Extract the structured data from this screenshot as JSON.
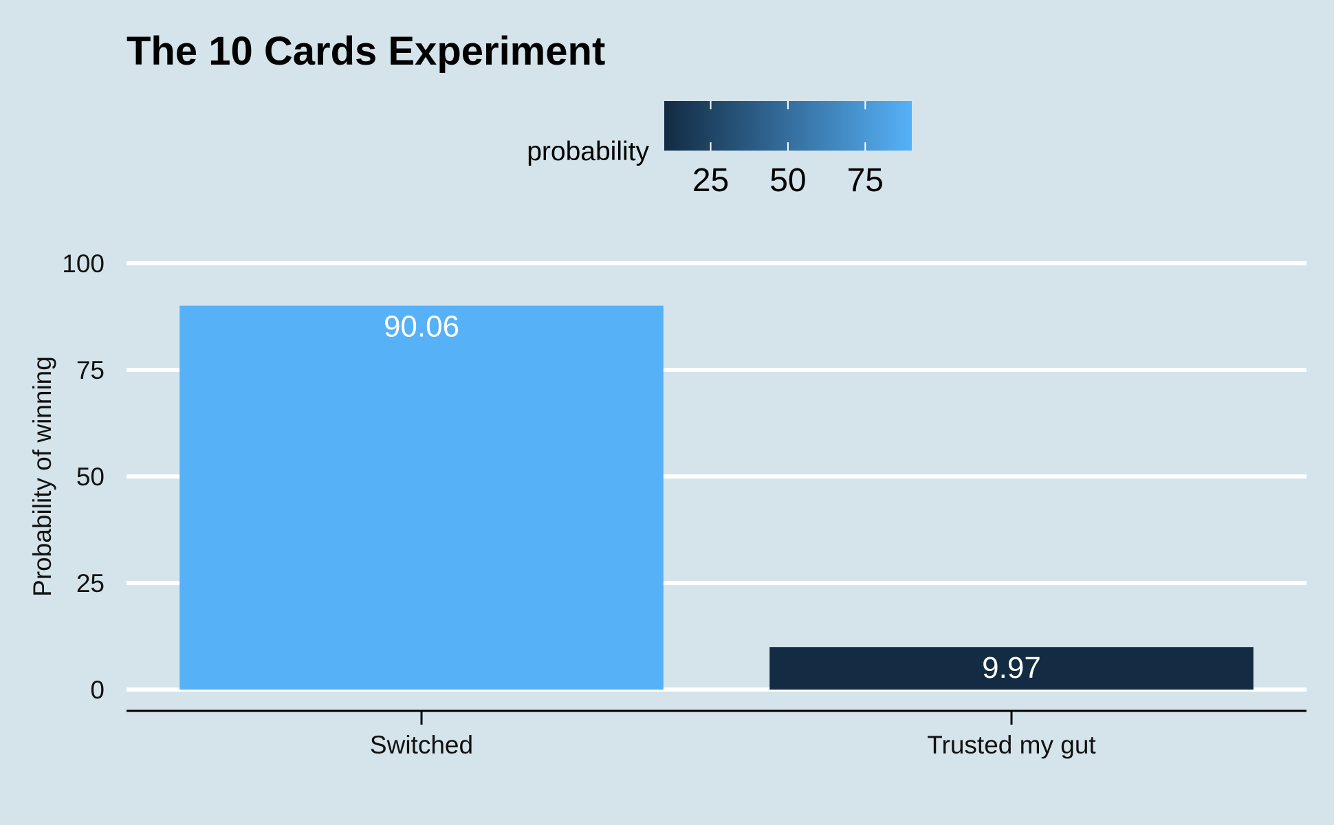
{
  "chart_data": {
    "type": "bar",
    "title": "The 10 Cards Experiment",
    "xlabel": "",
    "ylabel": "Probability of winning",
    "categories": [
      "Switched",
      "Trusted my gut"
    ],
    "values": [
      90.06,
      9.97
    ],
    "data_labels": [
      "90.06",
      "9.97"
    ],
    "ylim": [
      0,
      100
    ],
    "yticks": [
      0,
      25,
      50,
      75,
      100
    ],
    "grid": "horizontal",
    "legend": {
      "title": "probability",
      "type": "colorbar",
      "placement": "top",
      "range": [
        9.97,
        90.06
      ],
      "ticks": [
        25,
        50,
        75
      ],
      "low_color": "#132b43",
      "high_color": "#56b1f7"
    },
    "colors": {
      "background": "#d5e4eb",
      "gridline": "#ffffff",
      "axis": "#000000",
      "data_label": "#ffffff"
    }
  }
}
